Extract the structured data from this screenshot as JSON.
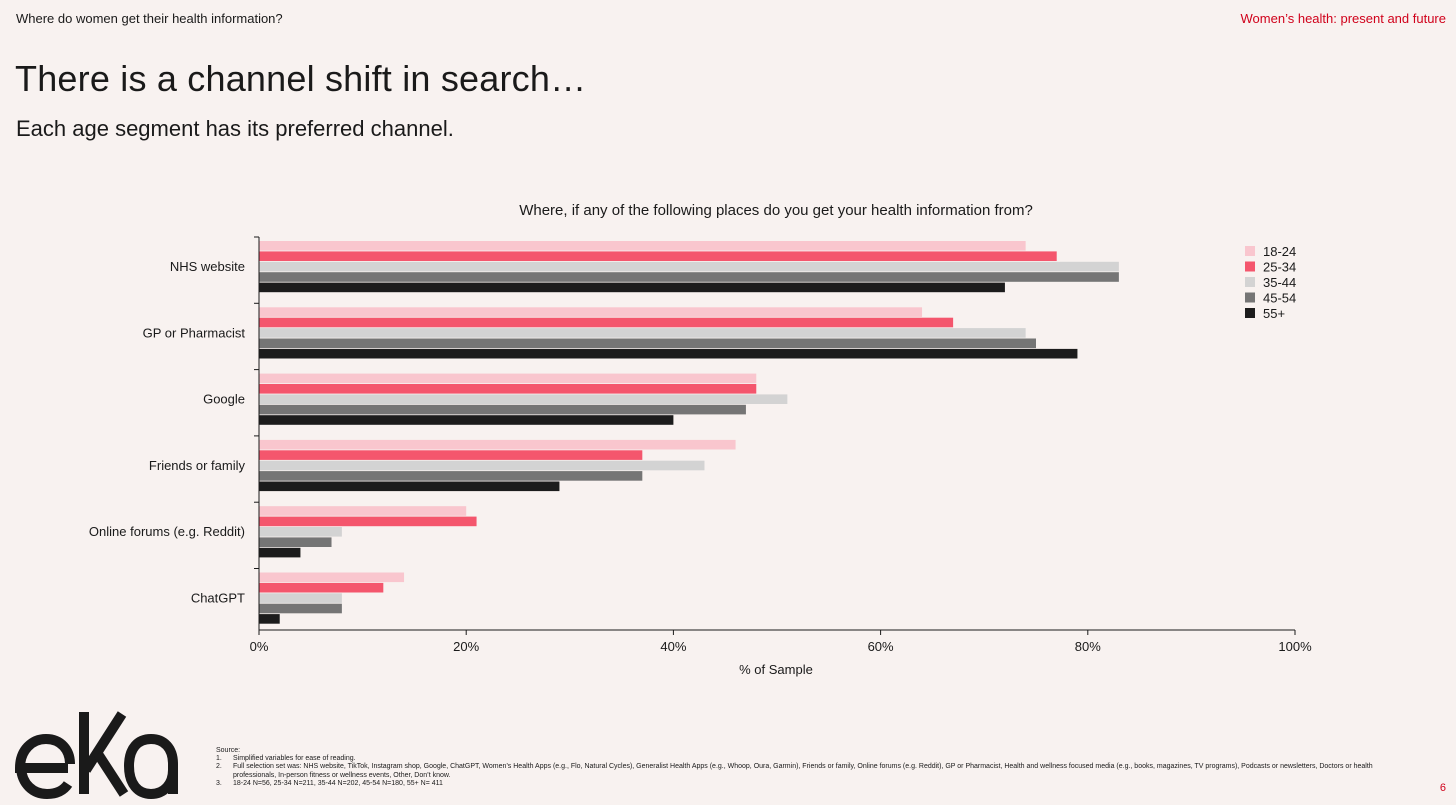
{
  "header": {
    "section_label": "Where do women get their health information?",
    "report_title": "Women’s health: present and future"
  },
  "headline": "There is a channel shift in search…",
  "subheadline": "Each age segment has its preferred channel.",
  "colors": {
    "background": "#f8f2f0",
    "accent_red": "#d0021b",
    "series": [
      "#f9c6ce",
      "#f4566d",
      "#d3d3d3",
      "#757575",
      "#1c1c1c"
    ]
  },
  "chart_data": {
    "type": "bar",
    "orientation": "horizontal",
    "title": "Where, if any of the following places do you get your health information from?",
    "xlabel": "% of Sample",
    "ylabel": "",
    "xlim": [
      0,
      100
    ],
    "x_ticks": [
      "0%",
      "20%",
      "40%",
      "60%",
      "80%",
      "100%"
    ],
    "grid": false,
    "legend_position": "top-right",
    "categories": [
      "NHS website",
      "GP or Pharmacist",
      "Google",
      "Friends or family",
      "Online forums (e.g. Reddit)",
      "ChatGPT"
    ],
    "series": [
      {
        "name": "18-24",
        "color": "#f9c6ce",
        "values": [
          74,
          64,
          48,
          46,
          20,
          14
        ]
      },
      {
        "name": "25-34",
        "color": "#f4566d",
        "values": [
          77,
          67,
          48,
          37,
          21,
          12
        ]
      },
      {
        "name": "35-44",
        "color": "#d3d3d3",
        "values": [
          83,
          74,
          51,
          43,
          8,
          8
        ]
      },
      {
        "name": "45-54",
        "color": "#757575",
        "values": [
          83,
          75,
          47,
          37,
          7,
          8
        ]
      },
      {
        "name": "55+",
        "color": "#1c1c1c",
        "values": [
          72,
          79,
          40,
          29,
          4,
          2
        ]
      }
    ]
  },
  "logo_text": "eka",
  "footnotes": {
    "heading": "Source:",
    "items": [
      {
        "num": "1.",
        "text": "Simplified variables for ease of reading."
      },
      {
        "num": "2.",
        "text": "Full selection set was: NHS website, TikTok, Instagram shop, Google, ChatGPT, Women’s Health Apps (e.g., Flo, Natural Cycles), Generalist Health Apps (e.g., Whoop, Oura, Garmin), Friends or family, Online forums (e.g. Reddit), GP or Pharmacist, Health and wellness focused media (e.g., books, magazines, TV programs), Podcasts or newsletters, Doctors or health professionals, In-person fitness or wellness events, Other, Don’t know."
      },
      {
        "num": "3.",
        "text": "18-24 N=56, 25-34 N=211, 35-44 N=202, 45-54 N=180, 55+ N= 411"
      }
    ]
  },
  "page_number": "6"
}
